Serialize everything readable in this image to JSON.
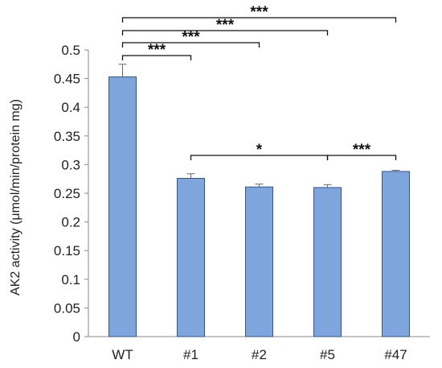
{
  "chart_data": {
    "type": "bar",
    "ylabel": "AK2 activity (μmol/min/protein mg)",
    "xlabel": "",
    "categories": [
      "WT",
      "#1",
      "#2",
      "#5",
      "#47"
    ],
    "values": [
      0.453,
      0.276,
      0.261,
      0.26,
      0.288
    ],
    "errors": [
      0.022,
      0.008,
      0.005,
      0.005,
      0.002
    ],
    "ylim": [
      0,
      0.5
    ],
    "yticks": [
      0,
      0.05,
      0.1,
      0.15,
      0.2,
      0.25,
      0.3,
      0.35,
      0.4,
      0.45,
      0.5
    ],
    "ytick_labels": [
      "0",
      "0.05",
      "0.1",
      "0.15",
      "0.2",
      "0.25",
      "0.3",
      "0.35",
      "0.4",
      "0.45",
      "0.5"
    ],
    "grid": false,
    "bar_color": "#7ea6dc",
    "bar_edge_color": "#2f5597",
    "significance": [
      {
        "from": "WT",
        "to": "#47",
        "label": "***"
      },
      {
        "from": "WT",
        "to": "#5",
        "label": "***"
      },
      {
        "from": "WT",
        "to": "#2",
        "label": "***"
      },
      {
        "from": "WT",
        "to": "#1",
        "label": "***"
      },
      {
        "from": "#1",
        "to": "#5",
        "label": "*"
      },
      {
        "from": "#5",
        "to": "#47",
        "label": "***"
      }
    ]
  }
}
